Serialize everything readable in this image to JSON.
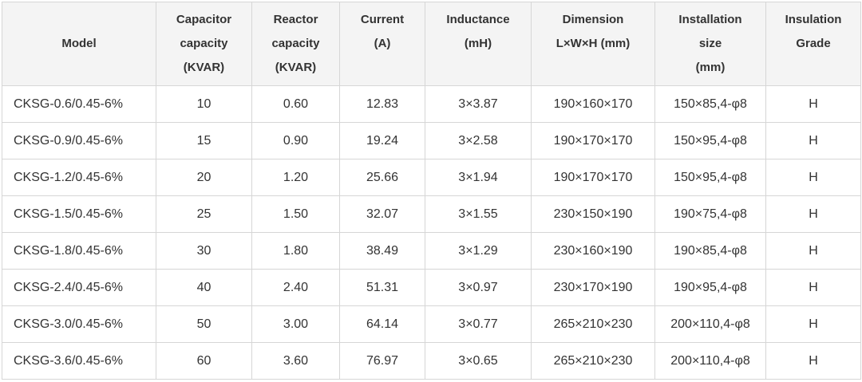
{
  "table": {
    "headers": [
      [
        "Model"
      ],
      [
        "Capacitor",
        "capacity",
        "(KVAR)"
      ],
      [
        "Reactor",
        "capacity",
        "(KVAR)"
      ],
      [
        "Current",
        "(A)",
        ""
      ],
      [
        "Inductance",
        "(mH)",
        ""
      ],
      [
        "Dimension",
        "L×W×H (mm)",
        ""
      ],
      [
        "Installation",
        "size",
        "(mm)"
      ],
      [
        "Insulation",
        "Grade",
        ""
      ]
    ],
    "rows": [
      [
        "CKSG-0.6/0.45-6%",
        "10",
        "0.60",
        "12.83",
        "3×3.87",
        "190×160×170",
        "150×85,4-φ8",
        "H"
      ],
      [
        "CKSG-0.9/0.45-6%",
        "15",
        "0.90",
        "19.24",
        "3×2.58",
        "190×170×170",
        "150×95,4-φ8",
        "H"
      ],
      [
        "CKSG-1.2/0.45-6%",
        "20",
        "1.20",
        "25.66",
        "3×1.94",
        "190×170×170",
        "150×95,4-φ8",
        "H"
      ],
      [
        "CKSG-1.5/0.45-6%",
        "25",
        "1.50",
        "32.07",
        "3×1.55",
        "230×150×190",
        "190×75,4-φ8",
        "H"
      ],
      [
        "CKSG-1.8/0.45-6%",
        "30",
        "1.80",
        "38.49",
        "3×1.29",
        "230×160×190",
        "190×85,4-φ8",
        "H"
      ],
      [
        "CKSG-2.4/0.45-6%",
        "40",
        "2.40",
        "51.31",
        "3×0.97",
        "230×170×190",
        "190×95,4-φ8",
        "H"
      ],
      [
        "CKSG-3.0/0.45-6%",
        "50",
        "3.00",
        "64.14",
        "3×0.77",
        "265×210×230",
        "200×110,4-φ8",
        "H"
      ],
      [
        "CKSG-3.6/0.45-6%",
        "60",
        "3.60",
        "76.97",
        "3×0.65",
        "265×210×230",
        "200×110,4-φ8",
        "H"
      ]
    ]
  }
}
